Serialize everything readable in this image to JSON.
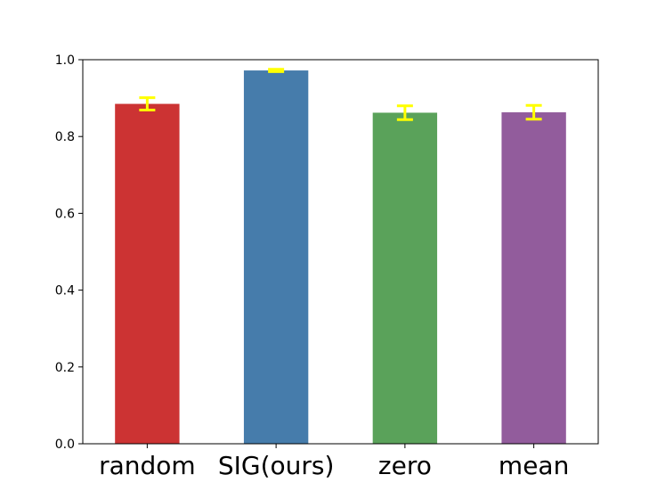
{
  "chart_data": {
    "type": "bar",
    "categories": [
      "random",
      "SIG(ours)",
      "zero",
      "mean"
    ],
    "values": [
      0.885,
      0.972,
      0.862,
      0.863
    ],
    "error": [
      0.016,
      0.003,
      0.018,
      0.018
    ],
    "colors": [
      "#cc3333",
      "#467cab",
      "#5aa25a",
      "#925c9c"
    ],
    "error_color": "#ffff00",
    "ylim": [
      0.0,
      1.0
    ],
    "yticks": [
      "0.0",
      "0.2",
      "0.4",
      "0.6",
      "0.8",
      "1.0"
    ],
    "ytick_values": [
      0.0,
      0.2,
      0.4,
      0.6,
      0.8,
      1.0
    ],
    "grid": false,
    "title": "",
    "xlabel": "",
    "ylabel": ""
  }
}
